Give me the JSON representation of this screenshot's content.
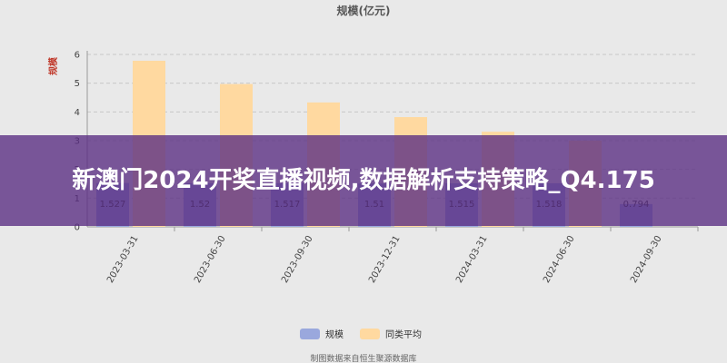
{
  "chart_data": {
    "type": "bar",
    "title": "规模(亿元)",
    "ylabel": "规模",
    "ylim": [
      0,
      6
    ],
    "yticks": [
      0,
      1,
      2,
      3,
      4,
      5,
      6
    ],
    "grid": "dashed horizontal",
    "legend_position": "bottom",
    "categories": [
      "2023-03-31",
      "2023-06-30",
      "2023-09-30",
      "2023-12-31",
      "2024-03-31",
      "2024-06-30",
      "2024-09-30"
    ],
    "series": [
      {
        "name": "规模",
        "color": "#9aa8dd",
        "values": [
          1.527,
          1.52,
          1.517,
          1.51,
          1.515,
          1.518,
          0.794
        ],
        "labels": [
          "1.527",
          "1.52",
          "1.517",
          "1.51",
          "1.515",
          "1.518",
          "0.794"
        ]
      },
      {
        "name": "同类平均",
        "color": "#ffd9a0",
        "values": [
          5.78,
          4.97,
          4.33,
          3.82,
          3.31,
          3.0,
          null
        ]
      }
    ]
  },
  "banner": {
    "text": "新澳门2024开奖直播视频,数据解析支持策略_Q4.175"
  },
  "footer": {
    "text": "制图数据来自恒生聚源数据库"
  }
}
